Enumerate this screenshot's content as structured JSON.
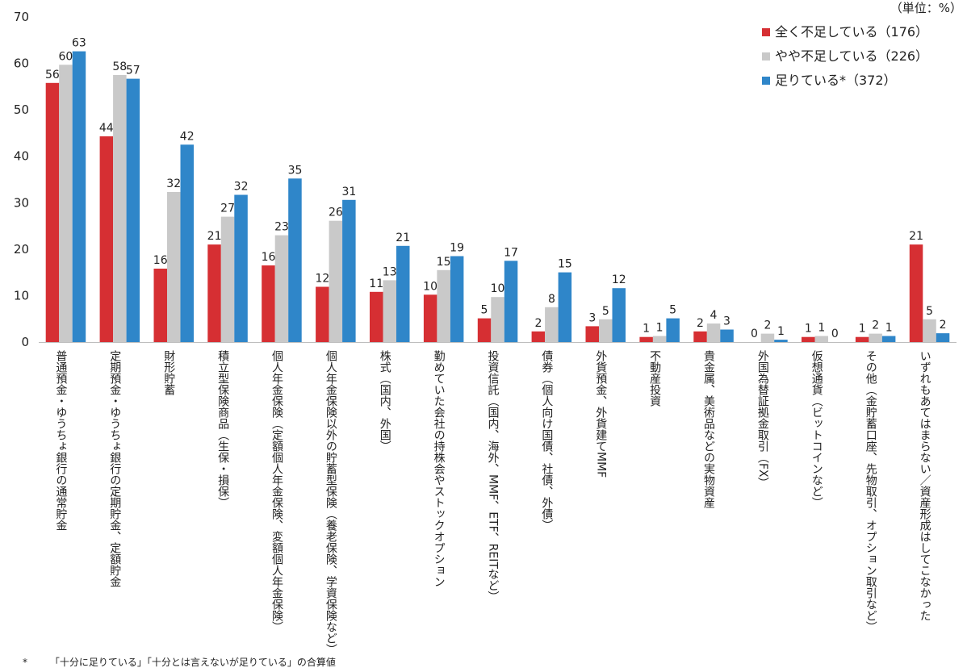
{
  "chart_data": {
    "type": "bar",
    "unit_note": "（単位：%）",
    "ylim": [
      0,
      70
    ],
    "yticks": [
      0,
      10,
      20,
      30,
      40,
      50,
      60,
      70
    ],
    "grid": false,
    "legend_position": "top-right",
    "categories": [
      "普通預金・ゆうちょ銀行の通常貯金",
      "定期預金・ゆうちょ銀行の定期貯金、定額貯金",
      "財形貯蓄",
      "積立型保険商品（生保・損保）",
      "個人年金保険（定額個人年金保険、変額個人年金保険）",
      "個人年金保険以外の貯蓄型保険（養老保険、学資保険など）",
      "株式（国内、外国）",
      "勤めていた会社の持株会やストックオプション",
      "投資信託（国内、海外、MMF、ETF、REITなど）",
      "債券（個人向け国債、社債、外債）",
      "外貨預金、外貨建てMMF",
      "不動産投資",
      "貴金属、美術品などの実物資産",
      "外国為替証拠金取引（FX）",
      "仮想通貨（ビットコインなど）",
      "その他（金貯蓄口座、先物取引、オプション取引など）",
      "いずれもあてはまらない／資産形成はしてこなかった"
    ],
    "series": [
      {
        "name": "全く不足している（176）",
        "color": "#d62f33",
        "values": [
          56,
          44,
          16,
          21,
          16,
          12,
          11,
          10,
          5,
          2,
          3,
          1,
          2,
          0,
          1,
          1,
          21
        ],
        "bar_values": [
          55.8,
          44.3,
          15.8,
          21.0,
          16.5,
          11.9,
          10.8,
          10.2,
          5.1,
          2.3,
          3.4,
          1.1,
          2.3,
          0,
          1.1,
          1.1,
          21.0
        ]
      },
      {
        "name": "やや不足している（226）",
        "color": "#c9c9c9",
        "values": [
          60,
          58,
          32,
          27,
          23,
          26,
          13,
          15,
          10,
          8,
          5,
          1,
          4,
          2,
          1,
          2,
          5
        ],
        "bar_values": [
          59.7,
          57.5,
          32.3,
          27.0,
          23.0,
          26.1,
          13.3,
          15.5,
          9.7,
          7.5,
          4.9,
          1.3,
          4.0,
          1.8,
          1.3,
          1.8,
          4.9
        ]
      },
      {
        "name": "足りている*（372）",
        "color": "#2f86c9",
        "values": [
          63,
          57,
          42,
          32,
          35,
          31,
          21,
          19,
          17,
          15,
          12,
          5,
          3,
          1,
          0,
          1,
          2
        ],
        "bar_values": [
          62.6,
          56.7,
          42.5,
          31.7,
          35.2,
          30.6,
          20.7,
          18.5,
          17.5,
          15.0,
          11.6,
          5.1,
          2.7,
          0.5,
          0,
          1.3,
          1.9
        ]
      }
    ],
    "footnote_mark": "*",
    "footnote": "「十分に足りている」「十分とは言えないが足りている」の合算値"
  }
}
